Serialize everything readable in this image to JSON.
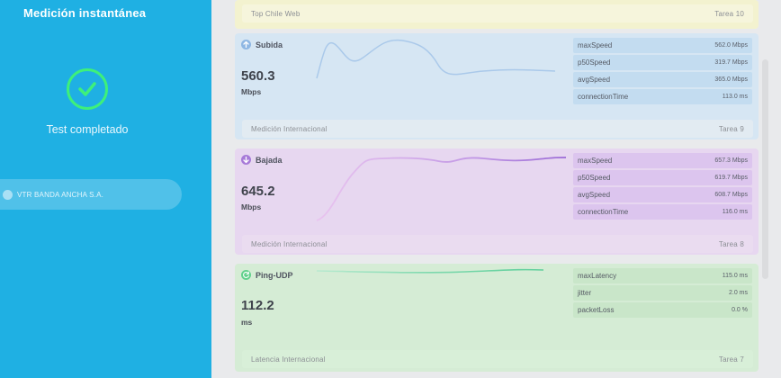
{
  "sidebar": {
    "title": "Medición instantánea",
    "status": "Test completado",
    "isp": "VTR BANDA ANCHA S.A."
  },
  "cards": {
    "top": {
      "label": "Top Chile Web",
      "task": "Tarea 10"
    },
    "upload": {
      "title": "Subida",
      "value": "560.3",
      "unit": "Mbps",
      "metrics": [
        {
          "name": "maxSpeed",
          "value": "562.0 Mbps"
        },
        {
          "name": "p50Speed",
          "value": "319.7 Mbps"
        },
        {
          "name": "avgSpeed",
          "value": "365.0 Mbps"
        },
        {
          "name": "connectionTime",
          "value": "113.0 ms"
        }
      ],
      "footer_label": "Medición Internacional",
      "task": "Tarea 9",
      "color": "#8fb7e3"
    },
    "download": {
      "title": "Bajada",
      "value": "645.2",
      "unit": "Mbps",
      "metrics": [
        {
          "name": "maxSpeed",
          "value": "657.3 Mbps"
        },
        {
          "name": "p50Speed",
          "value": "619.7 Mbps"
        },
        {
          "name": "avgSpeed",
          "value": "608.7 Mbps"
        },
        {
          "name": "connectionTime",
          "value": "116.0 ms"
        }
      ],
      "footer_label": "Medición Internacional",
      "task": "Tarea 8",
      "color": "#a77ad8"
    },
    "ping": {
      "title": "Ping-UDP",
      "value": "112.2",
      "unit": "ms",
      "metrics": [
        {
          "name": "maxLatency",
          "value": "115.0 ms"
        },
        {
          "name": "jitter",
          "value": "2.0 ms"
        },
        {
          "name": "packetLoss",
          "value": "0.0 %"
        }
      ],
      "footer_label": "Latencia Internacional",
      "task": "Tarea 7",
      "color": "#62d18c"
    }
  }
}
